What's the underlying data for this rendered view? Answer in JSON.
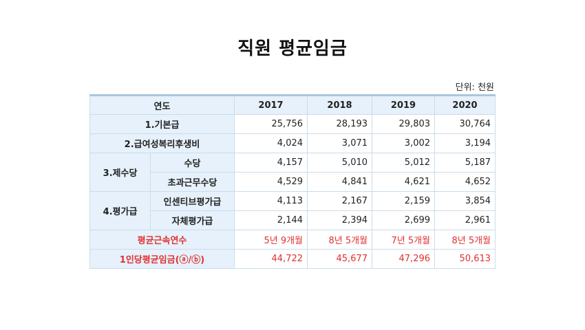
{
  "title": "직원 평균임금",
  "unit": "단위: 천원",
  "table": {
    "year_header": "연도",
    "years": [
      "2017",
      "2018",
      "2019",
      "2020"
    ],
    "rows": {
      "basic": {
        "label": "1.기본급",
        "values": [
          "25,756",
          "28,193",
          "29,803",
          "30,764"
        ]
      },
      "welfare": {
        "label": "2.급여성복리후생비",
        "values": [
          "4,024",
          "3,071",
          "3,002",
          "3,194"
        ]
      },
      "allowance_group": "3.제수당",
      "allowance": {
        "label": "수당",
        "values": [
          "4,157",
          "5,010",
          "5,012",
          "5,187"
        ]
      },
      "overtime": {
        "label": "초과근무수당",
        "values": [
          "4,529",
          "4,841",
          "4,621",
          "4,652"
        ]
      },
      "eval_group": "4.평가급",
      "incentive": {
        "label": "인센티브평가급",
        "values": [
          "4,113",
          "2,167",
          "2,159",
          "3,854"
        ]
      },
      "self_eval": {
        "label": "자체평가급",
        "values": [
          "2,144",
          "2,394",
          "2,699",
          "2,961"
        ]
      },
      "tenure": {
        "label": "평균근속연수",
        "values": [
          "5년 9개월",
          "8년 5개월",
          "7년 5개월",
          "8년 5개월"
        ]
      },
      "avg_wage": {
        "label": "1인당평균임금(ⓐ/ⓑ)",
        "values": [
          "44,722",
          "45,677",
          "47,296",
          "50,613"
        ]
      }
    }
  },
  "colors": {
    "header_bg": "#e6f1fb",
    "border": "#c9dcea",
    "highlight": "#e03030"
  }
}
